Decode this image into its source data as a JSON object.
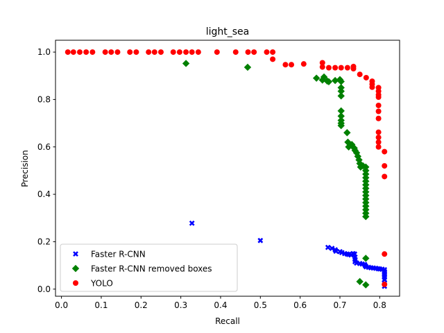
{
  "chart_data": {
    "type": "scatter",
    "title": "light_sea",
    "xlabel": "Recall",
    "ylabel": "Precision",
    "xlim": [
      -0.015,
      0.85
    ],
    "ylim": [
      -0.03,
      1.05
    ],
    "xticks": [
      0.0,
      0.1,
      0.2,
      0.3,
      0.4,
      0.5,
      0.6,
      0.7,
      0.8
    ],
    "xtick_labels": [
      "0.0",
      "0.1",
      "0.2",
      "0.3",
      "0.4",
      "0.5",
      "0.6",
      "0.7",
      "0.8"
    ],
    "yticks": [
      0.0,
      0.2,
      0.4,
      0.6,
      0.8,
      1.0
    ],
    "ytick_labels": [
      "0.0",
      "0.2",
      "0.4",
      "0.6",
      "0.8",
      "1.0"
    ],
    "grid": false,
    "legend_position": "lower-left",
    "series": [
      {
        "name": "Faster R-CNN",
        "marker": "x",
        "color": "#0000ff",
        "points": [
          [
            0.328,
            0.278
          ],
          [
            0.5,
            0.205
          ],
          [
            0.67,
            0.176
          ],
          [
            0.68,
            0.172
          ],
          [
            0.688,
            0.166
          ],
          [
            0.69,
            0.16
          ],
          [
            0.7,
            0.158
          ],
          [
            0.705,
            0.154
          ],
          [
            0.712,
            0.15
          ],
          [
            0.718,
            0.148
          ],
          [
            0.722,
            0.146
          ],
          [
            0.728,
            0.144
          ],
          [
            0.733,
            0.15
          ],
          [
            0.737,
            0.148
          ],
          [
            0.738,
            0.135
          ],
          [
            0.738,
            0.125
          ],
          [
            0.738,
            0.116
          ],
          [
            0.742,
            0.11
          ],
          [
            0.75,
            0.108
          ],
          [
            0.756,
            0.106
          ],
          [
            0.762,
            0.104
          ],
          [
            0.764,
            0.098
          ],
          [
            0.766,
            0.094
          ],
          [
            0.772,
            0.092
          ],
          [
            0.778,
            0.09
          ],
          [
            0.784,
            0.089
          ],
          [
            0.79,
            0.088
          ],
          [
            0.796,
            0.086
          ],
          [
            0.8,
            0.085
          ],
          [
            0.806,
            0.084
          ],
          [
            0.812,
            0.082
          ],
          [
            0.812,
            0.074
          ],
          [
            0.812,
            0.066
          ],
          [
            0.812,
            0.058
          ],
          [
            0.812,
            0.05
          ],
          [
            0.812,
            0.04
          ],
          [
            0.812,
            0.025
          ],
          [
            0.812,
            0.012
          ]
        ]
      },
      {
        "name": "Faster R-CNN removed boxes",
        "marker": "D",
        "color": "#008000",
        "points": [
          [
            0.313,
            0.952
          ],
          [
            0.468,
            0.936
          ],
          [
            0.641,
            0.89
          ],
          [
            0.656,
            0.882
          ],
          [
            0.66,
            0.895
          ],
          [
            0.668,
            0.878
          ],
          [
            0.672,
            0.875
          ],
          [
            0.688,
            0.88
          ],
          [
            0.7,
            0.884
          ],
          [
            0.703,
            0.876
          ],
          [
            0.703,
            0.85
          ],
          [
            0.703,
            0.835
          ],
          [
            0.703,
            0.815
          ],
          [
            0.703,
            0.752
          ],
          [
            0.703,
            0.73
          ],
          [
            0.703,
            0.712
          ],
          [
            0.703,
            0.7
          ],
          [
            0.703,
            0.69
          ],
          [
            0.718,
            0.66
          ],
          [
            0.72,
            0.62
          ],
          [
            0.722,
            0.6
          ],
          [
            0.73,
            0.61
          ],
          [
            0.736,
            0.595
          ],
          [
            0.738,
            0.585
          ],
          [
            0.742,
            0.575
          ],
          [
            0.745,
            0.56
          ],
          [
            0.748,
            0.545
          ],
          [
            0.75,
            0.53
          ],
          [
            0.752,
            0.515
          ],
          [
            0.758,
            0.52
          ],
          [
            0.765,
            0.515
          ],
          [
            0.765,
            0.5
          ],
          [
            0.765,
            0.485
          ],
          [
            0.765,
            0.47
          ],
          [
            0.765,
            0.455
          ],
          [
            0.765,
            0.44
          ],
          [
            0.765,
            0.425
          ],
          [
            0.765,
            0.41
          ],
          [
            0.765,
            0.395
          ],
          [
            0.765,
            0.38
          ],
          [
            0.765,
            0.365
          ],
          [
            0.765,
            0.35
          ],
          [
            0.765,
            0.335
          ],
          [
            0.765,
            0.32
          ],
          [
            0.765,
            0.306
          ],
          [
            0.765,
            0.13
          ],
          [
            0.75,
            0.032
          ],
          [
            0.765,
            0.018
          ]
        ]
      },
      {
        "name": "YOLO",
        "marker": "o",
        "color": "#ff0000",
        "points": [
          [
            0.016,
            1.0
          ],
          [
            0.03,
            1.0
          ],
          [
            0.046,
            1.0
          ],
          [
            0.062,
            1.0
          ],
          [
            0.078,
            1.0
          ],
          [
            0.11,
            1.0
          ],
          [
            0.125,
            1.0
          ],
          [
            0.141,
            1.0
          ],
          [
            0.172,
            1.0
          ],
          [
            0.188,
            1.0
          ],
          [
            0.219,
            1.0
          ],
          [
            0.234,
            1.0
          ],
          [
            0.25,
            1.0
          ],
          [
            0.281,
            1.0
          ],
          [
            0.297,
            1.0
          ],
          [
            0.313,
            1.0
          ],
          [
            0.328,
            1.0
          ],
          [
            0.344,
            1.0
          ],
          [
            0.391,
            1.0
          ],
          [
            0.438,
            1.0
          ],
          [
            0.469,
            1.0
          ],
          [
            0.484,
            1.0
          ],
          [
            0.516,
            1.0
          ],
          [
            0.531,
            1.0
          ],
          [
            0.531,
            0.97
          ],
          [
            0.563,
            0.947
          ],
          [
            0.578,
            0.947
          ],
          [
            0.609,
            0.95
          ],
          [
            0.656,
            0.955
          ],
          [
            0.656,
            0.937
          ],
          [
            0.672,
            0.934
          ],
          [
            0.688,
            0.934
          ],
          [
            0.703,
            0.934
          ],
          [
            0.719,
            0.934
          ],
          [
            0.734,
            0.939
          ],
          [
            0.734,
            0.93
          ],
          [
            0.75,
            0.906
          ],
          [
            0.766,
            0.892
          ],
          [
            0.781,
            0.877
          ],
          [
            0.781,
            0.865
          ],
          [
            0.781,
            0.852
          ],
          [
            0.797,
            0.85
          ],
          [
            0.797,
            0.835
          ],
          [
            0.797,
            0.82
          ],
          [
            0.797,
            0.81
          ],
          [
            0.797,
            0.775
          ],
          [
            0.797,
            0.75
          ],
          [
            0.797,
            0.72
          ],
          [
            0.797,
            0.662
          ],
          [
            0.797,
            0.64
          ],
          [
            0.797,
            0.62
          ],
          [
            0.797,
            0.6
          ],
          [
            0.812,
            0.58
          ],
          [
            0.812,
            0.52
          ],
          [
            0.812,
            0.475
          ],
          [
            0.812,
            0.148
          ],
          [
            0.812,
            0.02
          ]
        ]
      }
    ]
  }
}
